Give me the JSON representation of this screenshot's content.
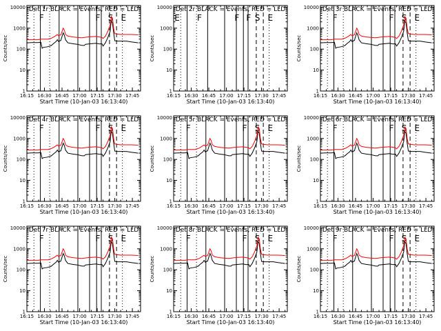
{
  "figure": {
    "colors": {
      "background": "#ffffff",
      "axes": "#000000",
      "events": "#000000",
      "lld": "#ff0000"
    }
  },
  "chart_data": {
    "type": "line",
    "shared": {
      "ylabel": "Counts/sec",
      "xlabel": "Start Time (10-Jan-03 16:13:40)",
      "xticks": [
        "16:15",
        "16:30",
        "16:45",
        "17:00",
        "17:15",
        "17:30",
        "17:45"
      ],
      "xtick_minutes": [
        15,
        30,
        45,
        60,
        75,
        90,
        105
      ],
      "xlim_minutes": [
        15,
        112
      ],
      "yscale": "log",
      "yticks": [
        "1",
        "10",
        "100",
        "1000",
        "10000"
      ],
      "ytick_values": [
        1,
        10,
        100,
        1000,
        10000
      ],
      "ylim": [
        1,
        12000
      ],
      "events_series": {
        "name": "Events",
        "color": "black",
        "points": [
          [
            15,
            200
          ],
          [
            19,
            205
          ],
          [
            24,
            205
          ],
          [
            27,
            210
          ],
          [
            28,
            110
          ],
          [
            29,
            120
          ],
          [
            33,
            130
          ],
          [
            36,
            150
          ],
          [
            38,
            190
          ],
          [
            40,
            230
          ],
          [
            41,
            280
          ],
          [
            42,
            230
          ],
          [
            44,
            260
          ],
          [
            46,
            600
          ],
          [
            47,
            450
          ],
          [
            48,
            280
          ],
          [
            50,
            200
          ],
          [
            54,
            180
          ],
          [
            58,
            170
          ],
          [
            62,
            150
          ],
          [
            64,
            150
          ],
          [
            65,
            170
          ],
          [
            70,
            180
          ],
          [
            74,
            190
          ],
          [
            77,
            175
          ],
          [
            79,
            180
          ],
          [
            80,
            140
          ],
          [
            82,
            200
          ],
          [
            84,
            350
          ],
          [
            86,
            700
          ],
          [
            87,
            2200
          ],
          [
            88,
            1800
          ],
          [
            89,
            600
          ],
          [
            90,
            250
          ],
          [
            92,
            240
          ],
          [
            95,
            240
          ],
          [
            100,
            240
          ],
          [
            104,
            220
          ],
          [
            110,
            200
          ]
        ]
      },
      "lld_series": {
        "name": "LLD",
        "color": "red",
        "points": [
          [
            15,
            280
          ],
          [
            19,
            280
          ],
          [
            24,
            280
          ],
          [
            27,
            300
          ],
          [
            30,
            300
          ],
          [
            33,
            300
          ],
          [
            36,
            330
          ],
          [
            38,
            380
          ],
          [
            40,
            450
          ],
          [
            41,
            500
          ],
          [
            42,
            430
          ],
          [
            44,
            480
          ],
          [
            46,
            1000
          ],
          [
            47,
            800
          ],
          [
            48,
            500
          ],
          [
            50,
            420
          ],
          [
            54,
            380
          ],
          [
            58,
            360
          ],
          [
            62,
            350
          ],
          [
            66,
            370
          ],
          [
            70,
            390
          ],
          [
            74,
            400
          ],
          [
            77,
            380
          ],
          [
            79,
            360
          ],
          [
            80,
            320
          ],
          [
            82,
            420
          ],
          [
            84,
            700
          ],
          [
            86,
            1400
          ],
          [
            87,
            3600
          ],
          [
            88,
            3000
          ],
          [
            89,
            1000
          ],
          [
            90,
            550
          ],
          [
            92,
            520
          ],
          [
            95,
            500
          ],
          [
            100,
            500
          ],
          [
            104,
            500
          ],
          [
            110,
            480
          ]
        ]
      },
      "default_annotations": {
        "solid_lines": [
          26.5,
          42.5,
          58.5,
          68.5,
          74.5,
          78.5
        ],
        "dashed_lines": [
          85.5,
          91.5
        ],
        "dotted_lines": [
          21,
          34.5,
          96.5
        ],
        "markers": [
          {
            "label": "F",
            "at": 27.5
          },
          {
            "label": "F",
            "at": 75.5
          },
          {
            "label": "S",
            "at": 86.5
          },
          {
            "label": "E",
            "at": 97.5
          }
        ]
      }
    },
    "panels": [
      {
        "title": "Det 1r BLACK = Events, RED = LLD"
      },
      {
        "title": "Det 2r BLACK = Events, RED = LLD",
        "no_data": true,
        "annotations": {
          "solid_lines": [
            26.5,
            44,
            58.5,
            68.5,
            74.5,
            78.5
          ],
          "dashed_lines": [
            85.5,
            91.5
          ],
          "dotted_lines": [
            21,
            34.5,
            96.5
          ],
          "markers": [
            {
              "label": "E",
              "at": 18
            },
            {
              "label": "F",
              "at": 37
            },
            {
              "label": "F",
              "at": 69
            },
            {
              "label": "F",
              "at": 79
            },
            {
              "label": "S",
              "at": 86.5
            },
            {
              "label": "E",
              "at": 97.5
            }
          ]
        }
      },
      {
        "title": "Det 3r BLACK = Events, RED = LLD"
      },
      {
        "title": "Det 4r BLACK = Events, RED = LLD"
      },
      {
        "title": "Det 5r BLACK = Events, RED = LLD"
      },
      {
        "title": "Det 6r BLACK = Events, RED = LLD"
      },
      {
        "title": "Det 7r BLACK = Events, RED = LLD"
      },
      {
        "title": "Det 8r BLACK = Events, RED = LLD"
      },
      {
        "title": "Det 9r BLACK = Events, RED = LLD"
      }
    ]
  }
}
